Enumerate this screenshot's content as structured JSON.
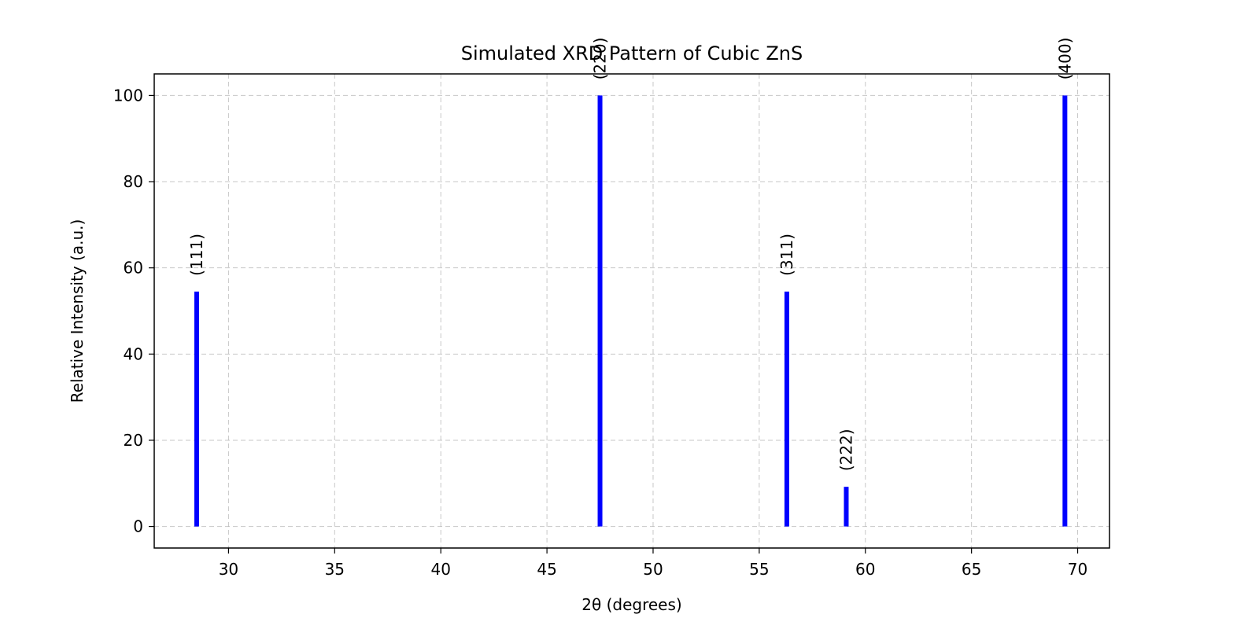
{
  "chart_data": {
    "type": "bar",
    "title": "Simulated XRD Pattern of Cubic ZnS",
    "xlabel": "2θ (degrees)",
    "ylabel": "Relative Intensity (a.u.)",
    "xlim": [
      26.5,
      71.5
    ],
    "ylim": [
      -5,
      105
    ],
    "xticks": [
      30,
      35,
      40,
      45,
      50,
      55,
      60,
      65,
      70
    ],
    "yticks": [
      0,
      20,
      40,
      60,
      80,
      100
    ],
    "grid": true,
    "bar_color": "#0000ff",
    "peaks": [
      {
        "x": 28.5,
        "y": 54.5,
        "label": "(111)"
      },
      {
        "x": 47.5,
        "y": 100,
        "label": "(220)"
      },
      {
        "x": 56.3,
        "y": 54.5,
        "label": "(311)"
      },
      {
        "x": 59.1,
        "y": 9.2,
        "label": "(222)"
      },
      {
        "x": 69.4,
        "y": 100,
        "label": "(400)"
      }
    ]
  }
}
